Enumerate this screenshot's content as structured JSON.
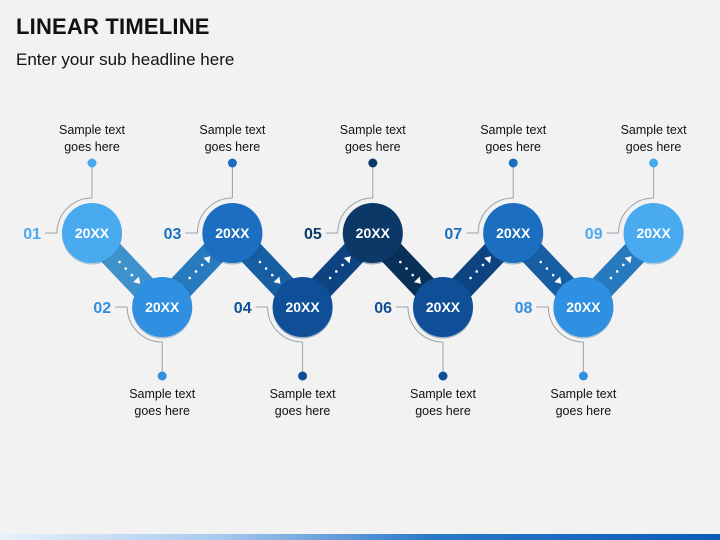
{
  "header": {
    "title": "LINEAR TIMELINE",
    "subtitle": "Enter your sub headline here"
  },
  "steps": [
    {
      "number": "01",
      "year": "20XX",
      "text_line1": "Sample text",
      "text_line2": "goes here",
      "color": "#4aaaf0",
      "number_color": "#4aaaf0"
    },
    {
      "number": "02",
      "year": "20XX",
      "text_line1": "Sample text",
      "text_line2": "goes here",
      "color": "#2f8fe0",
      "number_color": "#2f8fe0"
    },
    {
      "number": "03",
      "year": "20XX",
      "text_line1": "Sample text",
      "text_line2": "goes here",
      "color": "#1c6fc0",
      "number_color": "#1c6fc0"
    },
    {
      "number": "04",
      "year": "20XX",
      "text_line1": "Sample text",
      "text_line2": "goes here",
      "color": "#0f4f98",
      "number_color": "#0f4f98"
    },
    {
      "number": "05",
      "year": "20XX",
      "text_line1": "Sample text",
      "text_line2": "goes here",
      "color": "#0b3866",
      "number_color": "#0b3866"
    },
    {
      "number": "06",
      "year": "20XX",
      "text_line1": "Sample text",
      "text_line2": "goes here",
      "color": "#0f4f98",
      "number_color": "#0f4f98"
    },
    {
      "number": "07",
      "year": "20XX",
      "text_line1": "Sample text",
      "text_line2": "goes here",
      "color": "#1c6fc0",
      "number_color": "#1c6fc0"
    },
    {
      "number": "08",
      "year": "20XX",
      "text_line1": "Sample text",
      "text_line2": "goes here",
      "color": "#2f8fe0",
      "number_color": "#2f8fe0"
    },
    {
      "number": "09",
      "year": "20XX",
      "text_line1": "Sample text",
      "text_line2": "goes here",
      "color": "#4aaaf0",
      "number_color": "#4aaaf0"
    }
  ]
}
